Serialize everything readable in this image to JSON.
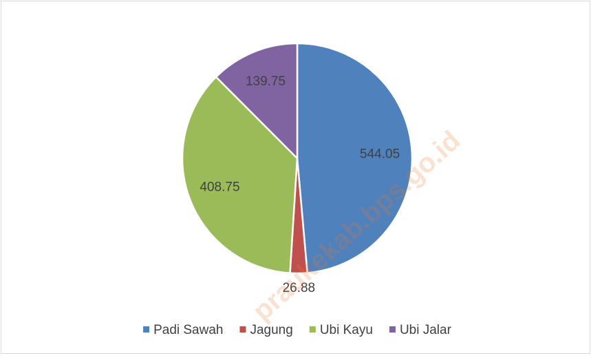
{
  "chart_data": {
    "type": "pie",
    "categories": [
      "Padi Sawah",
      "Jagung",
      "Ubi Kayu",
      "Ubi Jalar"
    ],
    "values": [
      544.05,
      26.88,
      408.75,
      139.75
    ],
    "colors": [
      "#4f81bd",
      "#c0504d",
      "#9bbb59",
      "#8064a2"
    ],
    "legend": "bottom",
    "watermark": "praukekab.bps.go.id"
  }
}
